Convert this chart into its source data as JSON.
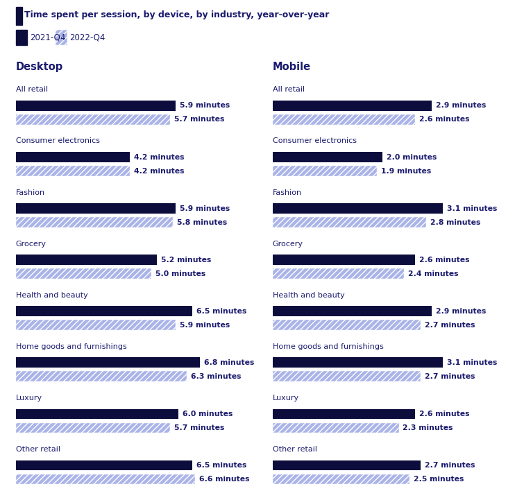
{
  "title": "Time spent per session, by device, by industry, year-over-year",
  "legend": [
    "2021-Q4",
    "2022-Q4"
  ],
  "color_2021": "#0d0d3d",
  "color_2022": "#aab4e8",
  "title_color": "#1a1a6e",
  "label_color": "#1a1a6e",
  "categories": [
    "All retail",
    "Consumer electronics",
    "Fashion",
    "Grocery",
    "Health and beauty",
    "Home goods and furnishings",
    "Luxury",
    "Other retail"
  ],
  "desktop_2021": [
    5.9,
    4.2,
    5.9,
    5.2,
    6.5,
    6.8,
    6.0,
    6.5
  ],
  "desktop_2022": [
    5.7,
    4.2,
    5.8,
    5.0,
    5.9,
    6.3,
    5.7,
    6.6
  ],
  "mobile_2021": [
    2.9,
    2.0,
    3.1,
    2.6,
    2.9,
    3.1,
    2.6,
    2.7
  ],
  "mobile_2022": [
    2.6,
    1.9,
    2.8,
    2.4,
    2.7,
    2.7,
    2.3,
    2.5
  ],
  "desktop_max": 8.5,
  "mobile_max": 4.2,
  "background_color": "#ffffff"
}
